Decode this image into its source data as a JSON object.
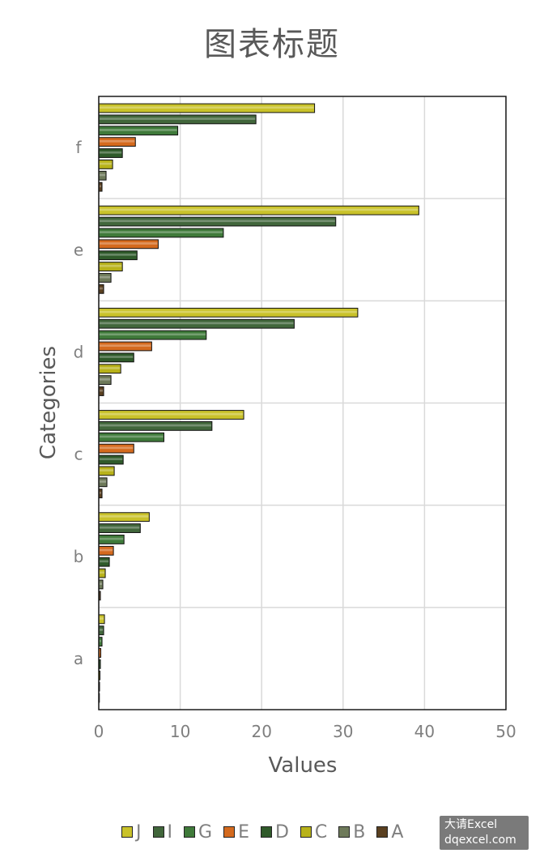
{
  "chart_data": {
    "type": "bar",
    "orientation": "horizontal",
    "title": "图表标题",
    "xlabel": "Values",
    "ylabel": "Categories",
    "categories": [
      "a",
      "b",
      "c",
      "d",
      "e",
      "f"
    ],
    "xlim": [
      0,
      50
    ],
    "xticks": [
      "0",
      "10",
      "20",
      "30",
      "40",
      "50"
    ],
    "grid": true,
    "legend_position": "bottom",
    "series": [
      {
        "name": "A",
        "color": "#5a4020",
        "values": [
          0.05,
          0.2,
          0.4,
          0.6,
          0.6,
          0.4
        ]
      },
      {
        "name": "B",
        "color": "#6e7a5a",
        "values": [
          0.1,
          0.5,
          1.0,
          1.5,
          1.5,
          0.9
        ]
      },
      {
        "name": "C",
        "color": "#b8b21a",
        "values": [
          0.15,
          0.8,
          1.9,
          2.7,
          2.9,
          1.7
        ]
      },
      {
        "name": "D",
        "color": "#2f5a2a",
        "values": [
          0.2,
          1.3,
          3.0,
          4.3,
          4.7,
          2.9
        ]
      },
      {
        "name": "E",
        "color": "#d46a1e",
        "values": [
          0.25,
          1.8,
          4.3,
          6.5,
          7.3,
          4.5
        ]
      },
      {
        "name": "G",
        "color": "#3f7a3a",
        "values": [
          0.4,
          3.1,
          8.0,
          13.2,
          15.3,
          9.7
        ]
      },
      {
        "name": "I",
        "color": "#41663b",
        "values": [
          0.6,
          5.1,
          13.9,
          24.0,
          29.1,
          19.3
        ]
      },
      {
        "name": "J",
        "color": "#c9c22a",
        "values": [
          0.7,
          6.2,
          17.8,
          31.8,
          39.3,
          26.5
        ]
      }
    ],
    "legend_order": [
      "J",
      "I",
      "G",
      "E",
      "D",
      "C",
      "B",
      "A"
    ]
  },
  "watermark": {
    "line1": "大请Excel",
    "line2": "dqexcel.com"
  }
}
